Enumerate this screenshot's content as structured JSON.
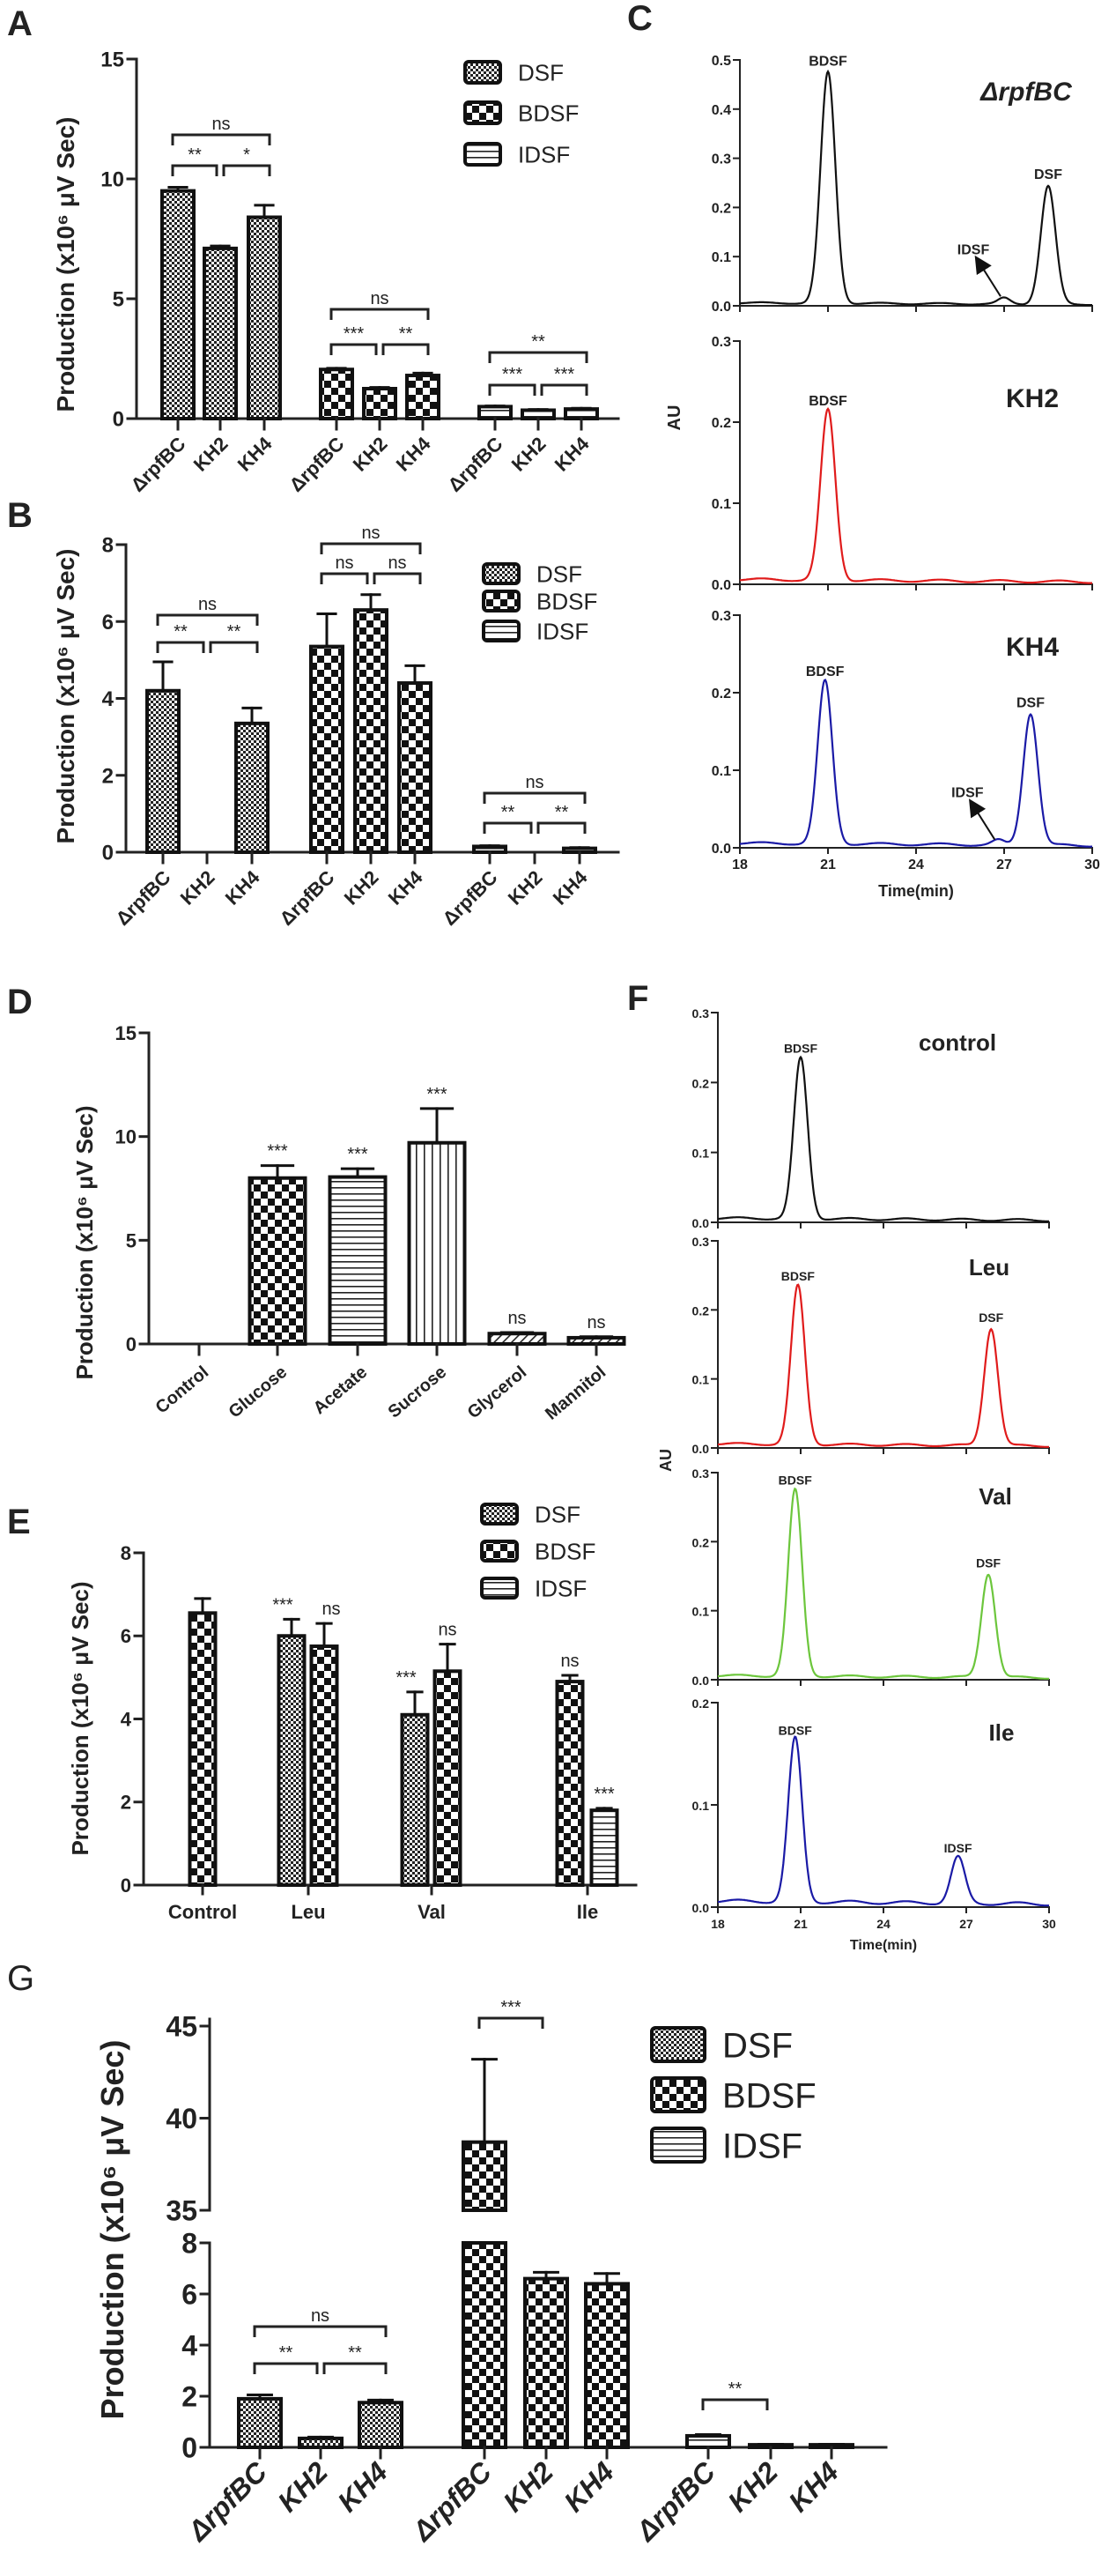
{
  "chart_data": [
    {
      "panel": "A",
      "type": "bar",
      "ylabel": "Production (x10⁶ μV Sec)",
      "ylim": [
        0,
        15
      ],
      "yticks": [
        0,
        5,
        10,
        15
      ],
      "legend": [
        "DSF",
        "BDSF",
        "IDSF"
      ],
      "legend_position": "top-right",
      "groups": [
        {
          "series": "DSF",
          "categories": [
            "ΔrpfBC",
            "KH2",
            "KH4"
          ],
          "values": [
            9.5,
            7.1,
            8.4
          ],
          "errors": [
            0.15,
            0.1,
            0.5
          ]
        },
        {
          "series": "BDSF",
          "categories": [
            "ΔrpfBC",
            "KH2",
            "KH4"
          ],
          "values": [
            2.05,
            1.25,
            1.8
          ],
          "errors": [
            0.05,
            0.05,
            0.1
          ]
        },
        {
          "series": "IDSF",
          "categories": [
            "ΔrpfBC",
            "KH2",
            "KH4"
          ],
          "values": [
            0.5,
            0.35,
            0.4
          ],
          "errors": [
            0.03,
            0.03,
            0.03
          ]
        }
      ],
      "significance": [
        {
          "group": 0,
          "a": 0,
          "b": 2,
          "label": "ns"
        },
        {
          "group": 0,
          "a": 0,
          "b": 1,
          "label": "**"
        },
        {
          "group": 0,
          "a": 1,
          "b": 2,
          "label": "*"
        },
        {
          "group": 1,
          "a": 0,
          "b": 2,
          "label": "ns"
        },
        {
          "group": 1,
          "a": 0,
          "b": 1,
          "label": "***"
        },
        {
          "group": 1,
          "a": 1,
          "b": 2,
          "label": "**"
        },
        {
          "group": 2,
          "a": 0,
          "b": 2,
          "label": "**"
        },
        {
          "group": 2,
          "a": 0,
          "b": 1,
          "label": "***"
        },
        {
          "group": 2,
          "a": 1,
          "b": 2,
          "label": "***"
        }
      ]
    },
    {
      "panel": "B",
      "type": "bar",
      "ylabel": "Production (x10⁶ μV Sec)",
      "ylim": [
        0,
        8
      ],
      "yticks": [
        0,
        2,
        4,
        6,
        8
      ],
      "legend": [
        "DSF",
        "BDSF",
        "IDSF"
      ],
      "legend_position": "right",
      "groups": [
        {
          "series": "DSF",
          "categories": [
            "ΔrpfBC",
            "KH2",
            "KH4"
          ],
          "values": [
            4.2,
            0,
            3.35
          ],
          "errors": [
            0.75,
            0,
            0.4
          ]
        },
        {
          "series": "BDSF",
          "categories": [
            "ΔrpfBC",
            "KH2",
            "KH4"
          ],
          "values": [
            5.35,
            6.3,
            4.4
          ],
          "errors": [
            0.85,
            0.4,
            0.45
          ]
        },
        {
          "series": "IDSF",
          "categories": [
            "ΔrpfBC",
            "KH2",
            "KH4"
          ],
          "values": [
            0.15,
            0,
            0.1
          ],
          "errors": [
            0.02,
            0,
            0.02
          ]
        }
      ],
      "significance": [
        {
          "group": 0,
          "a": 0,
          "b": 2,
          "label": "ns"
        },
        {
          "group": 0,
          "a": 0,
          "b": 1,
          "label": "**"
        },
        {
          "group": 0,
          "a": 1,
          "b": 2,
          "label": "**"
        },
        {
          "group": 1,
          "a": 0,
          "b": 2,
          "label": "ns"
        },
        {
          "group": 1,
          "a": 0,
          "b": 1,
          "label": "ns"
        },
        {
          "group": 1,
          "a": 1,
          "b": 2,
          "label": "ns"
        },
        {
          "group": 2,
          "a": 0,
          "b": 2,
          "label": "ns"
        },
        {
          "group": 2,
          "a": 0,
          "b": 1,
          "label": "**"
        },
        {
          "group": 2,
          "a": 1,
          "b": 2,
          "label": "**"
        }
      ]
    },
    {
      "panel": "C",
      "type": "line",
      "xlabel": "Time(min)",
      "ylabel": "AU",
      "xlim": [
        18,
        30
      ],
      "xticks": [
        18,
        21,
        24,
        27,
        30
      ],
      "subplots": [
        {
          "title": "ΔrpfBC",
          "ylim": [
            0,
            0.5
          ],
          "yticks": [
            "0.0",
            "0.1",
            "0.2",
            "0.3",
            "0.4",
            "0.5"
          ],
          "color": "#111111",
          "peaks": [
            {
              "label": "BDSF",
              "time": 21.0,
              "height": 0.47
            },
            {
              "label": "IDSF",
              "time": 27.0,
              "height": 0.012
            },
            {
              "label": "DSF",
              "time": 28.5,
              "height": 0.24
            }
          ]
        },
        {
          "title": "KH2",
          "ylim": [
            0,
            0.3
          ],
          "yticks": [
            "0.0",
            "0.1",
            "0.2",
            "0.3"
          ],
          "color": "#e01b1b",
          "peaks": [
            {
              "label": "BDSF",
              "time": 21.0,
              "height": 0.21
            }
          ]
        },
        {
          "title": "KH4",
          "ylim": [
            0,
            0.3
          ],
          "yticks": [
            "0.0",
            "0.1",
            "0.2",
            "0.3"
          ],
          "color": "#1a1aa6",
          "peaks": [
            {
              "label": "BDSF",
              "time": 20.9,
              "height": 0.21
            },
            {
              "label": "IDSF",
              "time": 26.8,
              "height": 0.006
            },
            {
              "label": "DSF",
              "time": 27.9,
              "height": 0.17
            }
          ]
        }
      ]
    },
    {
      "panel": "D",
      "type": "bar",
      "ylabel": "Production (x10⁶ μV Sec)",
      "ylim": [
        0,
        15
      ],
      "yticks": [
        0,
        5,
        10,
        15
      ],
      "categories": [
        "Control",
        "Glucose",
        "Acetate",
        "Sucrose",
        "Glycerol",
        "Mannitol"
      ],
      "values": [
        0,
        8.0,
        8.05,
        9.7,
        0.5,
        0.3
      ],
      "errors": [
        0,
        0.6,
        0.4,
        1.65,
        0.05,
        0.05
      ],
      "significance": [
        "",
        "***",
        "***",
        "***",
        "ns",
        "ns"
      ]
    },
    {
      "panel": "E",
      "type": "bar",
      "ylabel": "Production (x10⁶ μV Sec)",
      "ylim": [
        0,
        8
      ],
      "yticks": [
        0,
        2,
        4,
        6,
        8
      ],
      "legend": [
        "DSF",
        "BDSF",
        "IDSF"
      ],
      "legend_position": "top-right",
      "categories": [
        "Control",
        "Leu",
        "Val",
        "Ile"
      ],
      "bars": [
        {
          "category": "Control",
          "series": "BDSF",
          "value": 6.55,
          "error": 0.35,
          "significance": ""
        },
        {
          "category": "Leu",
          "series": "DSF",
          "value": 6.0,
          "error": 0.4,
          "significance": "***"
        },
        {
          "category": "Leu",
          "series": "BDSF",
          "value": 5.75,
          "error": 0.55,
          "significance": "ns"
        },
        {
          "category": "Val",
          "series": "DSF",
          "value": 4.1,
          "error": 0.55,
          "significance": "***"
        },
        {
          "category": "Val",
          "series": "BDSF",
          "value": 5.15,
          "error": 0.65,
          "significance": "ns"
        },
        {
          "category": "Ile",
          "series": "BDSF",
          "value": 4.9,
          "error": 0.15,
          "significance": "ns"
        },
        {
          "category": "Ile",
          "series": "IDSF",
          "value": 1.8,
          "error": 0.05,
          "significance": "***"
        }
      ]
    },
    {
      "panel": "F",
      "type": "line",
      "xlabel": "Time(min)",
      "ylabel": "AU",
      "xlim": [
        18,
        30
      ],
      "xticks": [
        18,
        21,
        24,
        27,
        30
      ],
      "subplots": [
        {
          "title": "control",
          "ylim": [
            0,
            0.3
          ],
          "yticks": [
            "0.0",
            "0.1",
            "0.2",
            "0.3"
          ],
          "color": "#111111",
          "peaks": [
            {
              "label": "BDSF",
              "time": 21.0,
              "height": 0.23
            }
          ]
        },
        {
          "title": "Leu",
          "ylim": [
            0,
            0.3
          ],
          "yticks": [
            "0.0",
            "0.1",
            "0.2",
            "0.3"
          ],
          "color": "#e01b1b",
          "peaks": [
            {
              "label": "BDSF",
              "time": 20.9,
              "height": 0.23
            },
            {
              "label": "DSF",
              "time": 27.9,
              "height": 0.17
            }
          ]
        },
        {
          "title": "Val",
          "ylim": [
            0,
            0.3
          ],
          "yticks": [
            "0.0",
            "0.1",
            "0.2",
            "0.3"
          ],
          "color": "#6cc63c",
          "peaks": [
            {
              "label": "BDSF",
              "time": 20.8,
              "height": 0.27
            },
            {
              "label": "DSF",
              "time": 27.8,
              "height": 0.15
            }
          ]
        },
        {
          "title": "Ile",
          "ylim": [
            0,
            0.2
          ],
          "yticks": [
            "0.0",
            "0.1",
            "0.2"
          ],
          "color": "#1a1aa6",
          "peaks": [
            {
              "label": "BDSF",
              "time": 20.8,
              "height": 0.16
            },
            {
              "label": "IDSF",
              "time": 26.7,
              "height": 0.045
            }
          ]
        }
      ]
    },
    {
      "panel": "G",
      "type": "bar",
      "ylabel": "Production (x10⁶ μV Sec)",
      "ylim": [
        0,
        45
      ],
      "y_break": [
        8,
        35
      ],
      "yticks": [
        0,
        2,
        4,
        6,
        8,
        35,
        40,
        45
      ],
      "legend": [
        "DSF",
        "BDSF",
        "IDSF"
      ],
      "legend_position": "top-right",
      "groups": [
        {
          "series": "DSF",
          "categories": [
            "ΔrpfBC",
            "KH2",
            "KH4"
          ],
          "values": [
            1.9,
            0.35,
            1.75
          ],
          "errors": [
            0.15,
            0.05,
            0.1
          ]
        },
        {
          "series": "BDSF",
          "categories": [
            "ΔrpfBC",
            "KH2",
            "KH4"
          ],
          "values": [
            38.7,
            6.6,
            6.4
          ],
          "errors": [
            4.5,
            0.25,
            0.4
          ]
        },
        {
          "series": "IDSF",
          "categories": [
            "ΔrpfBC",
            "KH2",
            "KH4"
          ],
          "values": [
            0.45,
            0.1,
            0.1
          ],
          "errors": [
            0.05,
            0.02,
            0.02
          ]
        }
      ],
      "significance": [
        {
          "group": 0,
          "a": 0,
          "b": 2,
          "label": "ns"
        },
        {
          "group": 0,
          "a": 0,
          "b": 1,
          "label": "**"
        },
        {
          "group": 0,
          "a": 1,
          "b": 2,
          "label": "**"
        },
        {
          "group": 1,
          "a": 0,
          "b": 1,
          "label": "***"
        },
        {
          "group": 2,
          "a": 0,
          "b": 1,
          "label": "**"
        }
      ]
    }
  ]
}
